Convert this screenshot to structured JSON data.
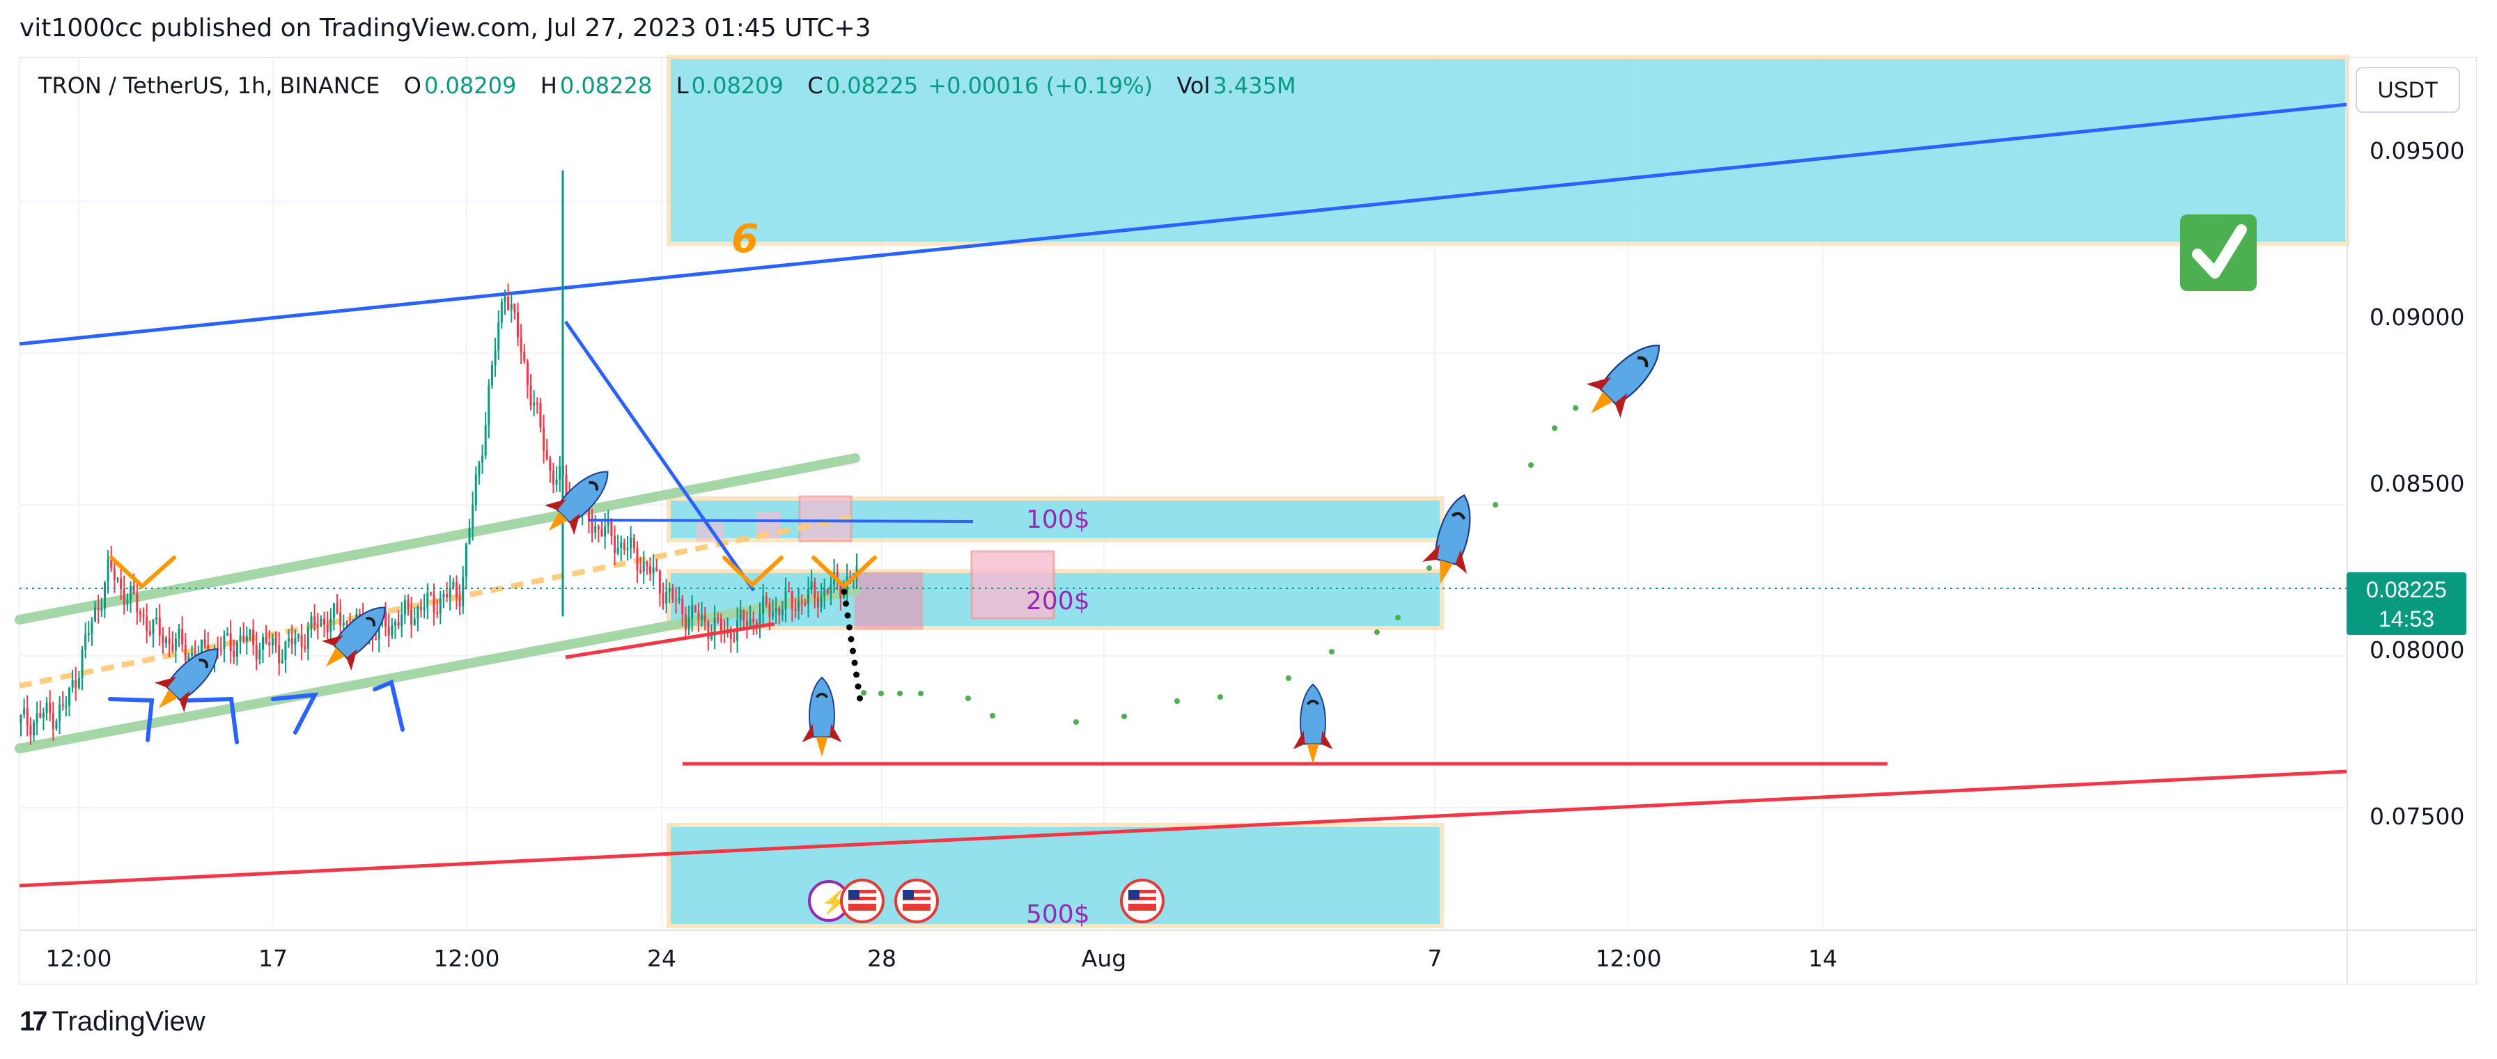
{
  "header": {
    "published_line": "vit1000cc published on TradingView.com, Jul 27, 2023 01:45 UTC+3"
  },
  "legend": {
    "symbol": "TRON / TetherUS, 1h, BINANCE",
    "open_label": "O",
    "open": "0.08209",
    "high_label": "H",
    "high": "0.08228",
    "low_label": "L",
    "low": "0.08209",
    "close_label": "C",
    "close": "0.08225",
    "change": "+0.00016 (+0.19%)",
    "vol_label": "Vol",
    "vol": "3.435M"
  },
  "currency_button": "USDT",
  "last_price": {
    "price": "0.08225",
    "countdown": "14:53",
    "color": "#089981"
  },
  "footer": {
    "logo_text": "TradingView"
  },
  "colors": {
    "zone_fill": "#80deea",
    "zone_border": "#ffe0b2",
    "blue_line": "#2962ff",
    "red_line": "#f23645",
    "green_channel": "#a5d6a7",
    "orange_dash": "#ffcc80",
    "dots_green": "#4caf50",
    "label_purple": "#9c27b0",
    "check_green": "#4caf50"
  },
  "annotations": {
    "wave_number": "6",
    "zone_100": "100$",
    "zone_200": "200$",
    "zone_500": "500$"
  },
  "chart_data": {
    "type": "candlestick",
    "symbol": "TRXUSDT",
    "interval": "1h",
    "y_ticks": [
      "0.09500",
      "0.09000",
      "0.08500",
      "0.08000",
      "0.07500"
    ],
    "y_tick_values": [
      0.095,
      0.09,
      0.085,
      0.08,
      0.075
    ],
    "x_ticks": [
      "12:00",
      "17",
      "12:00",
      "24",
      "28",
      "Aug",
      "7",
      "12:00",
      "14"
    ],
    "price_range": [
      0.0717,
      0.0978
    ],
    "last_price": 0.08225,
    "price_path": [
      0.0778,
      0.0782,
      0.0824,
      0.0806,
      0.0798,
      0.0803,
      0.08,
      0.081,
      0.0805,
      0.0812,
      0.0818,
      0.091,
      0.0855,
      0.0838,
      0.0828,
      0.0812,
      0.0805,
      0.0812,
      0.0816,
      0.0822
    ],
    "spike_high": 0.0944,
    "zones": [
      {
        "label": "6",
        "top": 0.0978,
        "bottom": 0.0936
      },
      {
        "label": "100$",
        "top": 0.0853,
        "bottom": 0.0839
      },
      {
        "label": "200$",
        "top": 0.0827,
        "bottom": 0.0809
      },
      {
        "label": "500$",
        "top": 0.0746,
        "bottom": 0.0717
      }
    ],
    "horizontal_support": 0.0765,
    "projection_levels": {
      "dip_low": 0.0778,
      "target": 0.0885
    }
  }
}
